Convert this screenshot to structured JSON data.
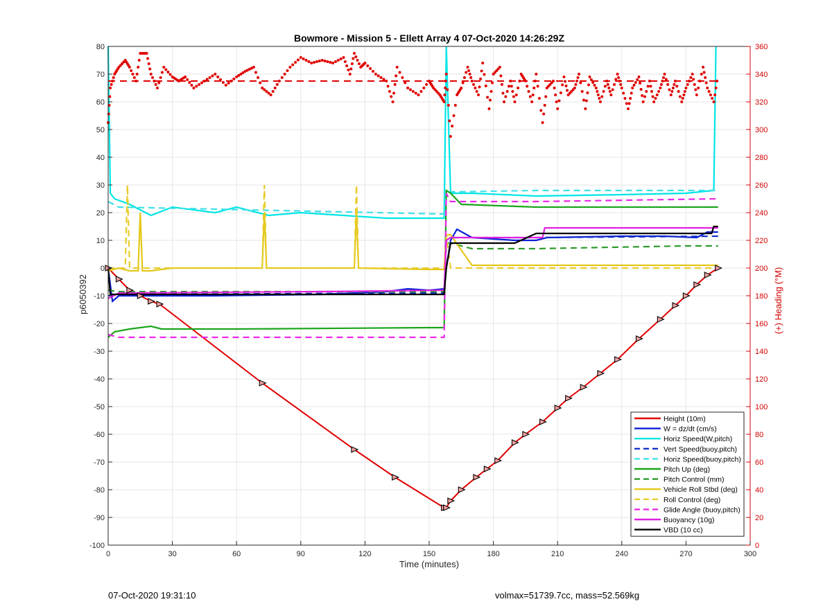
{
  "chart_data": {
    "type": "line",
    "title": "Bowmore - Mission 5 - Ellett Array 4 07-Oct-2020 14:26:29Z",
    "xlabel": "Time (minutes)",
    "ylabel_left": "p6050392",
    "ylabel_right": "(+) Heading (°M)",
    "xlim": [
      0,
      300
    ],
    "ylim_left": [
      -100,
      80
    ],
    "ylim_right": [
      0,
      360
    ],
    "xticks": [
      0,
      30,
      60,
      90,
      120,
      150,
      180,
      210,
      240,
      270,
      300
    ],
    "yticks_left": [
      80,
      70,
      60,
      50,
      40,
      30,
      20,
      10,
      0,
      -10,
      -20,
      -30,
      -40,
      -50,
      -60,
      -70,
      -80,
      -90,
      -100
    ],
    "yticks_right": [
      360,
      340,
      320,
      300,
      280,
      260,
      240,
      220,
      200,
      180,
      160,
      140,
      120,
      100,
      80,
      60,
      40,
      20,
      0
    ],
    "grid": true,
    "legend_position": "bottom-right",
    "series": [
      {
        "name": "Height (10m)",
        "color": "#e00000",
        "style": "solid",
        "x": [
          0,
          5,
          10,
          15,
          20,
          24,
          72,
          115,
          134,
          157,
          158,
          160,
          165,
          172,
          177,
          182,
          190,
          195,
          203,
          210,
          215,
          222,
          230,
          238,
          248,
          258,
          265,
          270,
          275,
          280,
          285
        ],
        "y": [
          0,
          -4,
          -8,
          -10,
          -12,
          -13,
          -41.5,
          -65.5,
          -75.5,
          -86.5,
          -86.5,
          -84,
          -80,
          -75.5,
          -72.5,
          -69.5,
          -63,
          -60,
          -55.5,
          -50.5,
          -47,
          -43,
          -38,
          -33,
          -25.5,
          -18.5,
          -13.5,
          -10,
          -6,
          -2.5,
          0
        ]
      },
      {
        "name": "W = dz/dt (cm/s)",
        "color": "#0b1fd6",
        "style": "solid",
        "x": [
          0,
          2,
          5,
          20,
          50,
          100,
          130,
          140,
          150,
          157,
          158,
          160,
          163,
          170,
          190,
          200,
          205,
          240,
          260,
          275,
          280,
          285
        ],
        "y": [
          0,
          -12,
          -10,
          -10,
          -10,
          -9.5,
          -8.5,
          -7.5,
          -8,
          -7.5,
          0,
          10,
          14,
          11,
          10,
          10,
          11,
          11.5,
          11.5,
          11,
          13,
          13
        ]
      },
      {
        "name": "Horiz Speed(W,pitch)",
        "color": "#00e5e5",
        "style": "solid",
        "x": [
          0,
          1,
          3,
          10,
          20,
          30,
          50,
          60,
          75,
          90,
          110,
          130,
          150,
          157,
          158,
          160,
          170,
          200,
          240,
          270,
          283,
          284
        ],
        "y": [
          80,
          27,
          25,
          23,
          19,
          22,
          20,
          22,
          19,
          20,
          19,
          18,
          18,
          18,
          80,
          27,
          27,
          26,
          26.5,
          27,
          28,
          80
        ]
      },
      {
        "name": "Vert Speed(buoy,pitch)",
        "color": "#1530c8",
        "style": "dashed",
        "x": [
          0,
          5,
          157,
          158,
          160,
          200,
          285
        ],
        "y": [
          -10,
          -9.5,
          -9,
          10,
          11,
          11,
          11.5
        ]
      },
      {
        "name": "Horiz Speed(buoy,pitch)",
        "color": "#3fe0e8",
        "style": "dashed",
        "x": [
          0,
          5,
          157,
          158,
          160,
          200,
          285
        ],
        "y": [
          24,
          22,
          19.5,
          28,
          27.5,
          28,
          28
        ]
      },
      {
        "name": "Pitch Up (deg)",
        "color": "#1aa51a",
        "style": "solid",
        "x": [
          0,
          3,
          10,
          20,
          25,
          60,
          150,
          157,
          158,
          160,
          165,
          200,
          240,
          285
        ],
        "y": [
          -25,
          -23,
          -22,
          -21,
          -22,
          -22,
          -21.5,
          -21.5,
          28,
          27,
          23,
          22,
          22,
          22
        ]
      },
      {
        "name": "Pitch Control (mm)",
        "color": "#2a9a2a",
        "style": "dashed",
        "x": [
          0,
          5,
          157,
          158,
          160,
          170,
          200,
          270,
          285
        ],
        "y": [
          -8,
          -8.5,
          -8.5,
          9,
          9,
          7,
          7,
          8,
          8
        ]
      },
      {
        "name": "Vehicle Roll Stbd (deg)",
        "color": "#e3c817",
        "style": "solid",
        "x": [
          0,
          5,
          10,
          14,
          15,
          16,
          20,
          30,
          60,
          72,
          73,
          74,
          110,
          115,
          116,
          117,
          150,
          157,
          158,
          160,
          170,
          285
        ],
        "y": [
          -1,
          0,
          -1,
          -1,
          20,
          -1,
          -1,
          0,
          0,
          0,
          20,
          0,
          0,
          0,
          20,
          0,
          -0.5,
          -0.5,
          12,
          12,
          1,
          1
        ]
      },
      {
        "name": "Roll Control (deg)",
        "color": "#e8cc2a",
        "style": "dashed",
        "x": [
          0,
          8,
          9,
          10,
          30,
          72,
          73,
          74,
          115,
          116,
          117,
          157,
          158,
          160,
          285
        ],
        "y": [
          0,
          0,
          30,
          0,
          0,
          0,
          30,
          0,
          0,
          30,
          0,
          0,
          12,
          0,
          0
        ]
      },
      {
        "name": "Glide Angle (buoy,pitch)",
        "color": "#ea28ea",
        "style": "dashed",
        "x": [
          0,
          5,
          30,
          157,
          158,
          160,
          200,
          285
        ],
        "y": [
          -24,
          -25,
          -25,
          -25,
          27,
          24,
          24,
          25
        ]
      },
      {
        "name": "Buoyancy (10g)",
        "color": "#e020e0",
        "style": "solid",
        "x": [
          0,
          5,
          100,
          157,
          158,
          160,
          203,
          204,
          285
        ],
        "y": [
          -11,
          -9,
          -8.5,
          -8,
          10,
          11,
          11,
          14.5,
          14.5
        ]
      },
      {
        "name": "VBD (10 cc)",
        "color": "#000000",
        "style": "solid",
        "x": [
          0,
          1,
          157,
          158,
          160,
          190,
          200,
          282,
          283,
          285
        ],
        "y": [
          0,
          -9.5,
          -9.5,
          0,
          9,
          9,
          12.5,
          12.5,
          15,
          15
        ]
      }
    ],
    "heading_series": {
      "axis": "right",
      "color": "#e00000",
      "dashed_reference": 335,
      "x": [
        0,
        1,
        3,
        5,
        8,
        10,
        13,
        15,
        18,
        20,
        23,
        26,
        30,
        33,
        36,
        40,
        45,
        50,
        55,
        60,
        64,
        68,
        72,
        76,
        80,
        85,
        90,
        95,
        100,
        105,
        110,
        113,
        115,
        118,
        120,
        125,
        130,
        133,
        135,
        140,
        145,
        150,
        152,
        155,
        157,
        158,
        160,
        163,
        165,
        168,
        170,
        173,
        175,
        178,
        180,
        183,
        185,
        188,
        190,
        193,
        195,
        198,
        200,
        203,
        205,
        208,
        210,
        213,
        215,
        218,
        220,
        223,
        225,
        228,
        230,
        233,
        235,
        238,
        240,
        243,
        245,
        248,
        250,
        253,
        255,
        258,
        260,
        263,
        265,
        268,
        270,
        273,
        275,
        278,
        280,
        283,
        285
      ],
      "y": [
        305,
        330,
        340,
        345,
        350,
        345,
        335,
        355,
        355,
        340,
        330,
        345,
        338,
        335,
        338,
        330,
        335,
        340,
        332,
        338,
        342,
        345,
        330,
        325,
        335,
        345,
        352,
        348,
        350,
        348,
        352,
        340,
        355,
        345,
        348,
        340,
        335,
        320,
        345,
        330,
        325,
        335,
        330,
        325,
        320,
        340,
        295,
        325,
        330,
        345,
        335,
        325,
        348,
        315,
        340,
        345,
        320,
        335,
        320,
        340,
        335,
        320,
        340,
        305,
        330,
        335,
        315,
        338,
        325,
        330,
        340,
        315,
        338,
        330,
        320,
        335,
        325,
        340,
        330,
        315,
        330,
        338,
        320,
        335,
        320,
        330,
        340,
        325,
        335,
        320,
        330,
        340,
        325,
        345,
        330,
        320,
        340
      ]
    },
    "legend": [
      {
        "label": "Height (10m)",
        "color": "#e00000",
        "style": "solid"
      },
      {
        "label": "W = dz/dt (cm/s)",
        "color": "#0b1fd6",
        "style": "solid"
      },
      {
        "label": "Horiz Speed(W,pitch)",
        "color": "#00e5e5",
        "style": "solid"
      },
      {
        "label": "Vert Speed(buoy,pitch)",
        "color": "#1530c8",
        "style": "dashed"
      },
      {
        "label": "Horiz Speed(buoy,pitch)",
        "color": "#3fe0e8",
        "style": "dashed"
      },
      {
        "label": "Pitch Up (deg)",
        "color": "#1aa51a",
        "style": "solid"
      },
      {
        "label": "Pitch Control (mm)",
        "color": "#2a9a2a",
        "style": "dashed"
      },
      {
        "label": "Vehicle Roll Stbd (deg)",
        "color": "#e3c817",
        "style": "solid"
      },
      {
        "label": "Roll Control (deg)",
        "color": "#e8cc2a",
        "style": "dashed"
      },
      {
        "label": "Glide Angle (buoy,pitch)",
        "color": "#ea28ea",
        "style": "dashed"
      },
      {
        "label": "Buoyancy (10g)",
        "color": "#e020e0",
        "style": "solid"
      },
      {
        "label": "VBD (10 cc)",
        "color": "#000000",
        "style": "solid"
      }
    ]
  },
  "footer": {
    "left": "07-Oct-2020 19:31:10",
    "right": "volmax=51739.7cc, mass=52.569kg"
  }
}
